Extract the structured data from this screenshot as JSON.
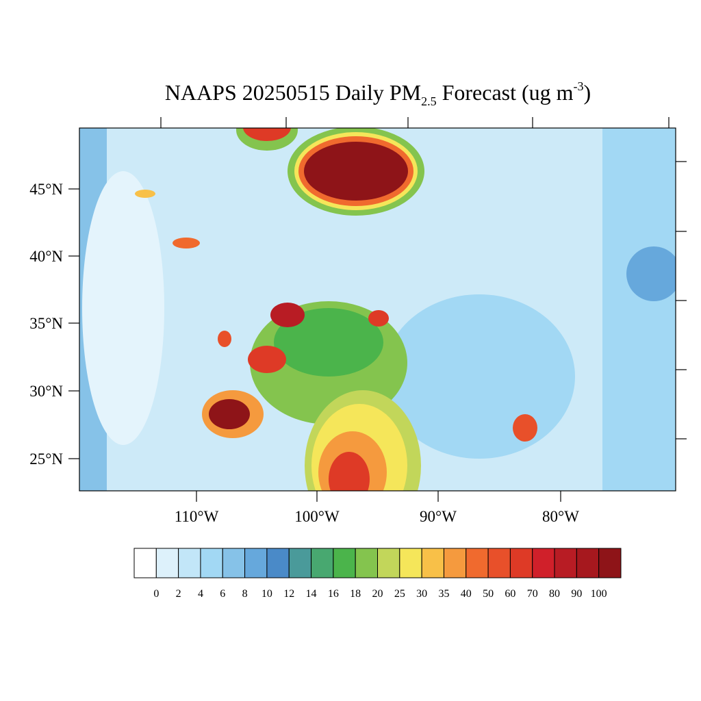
{
  "title": {
    "main": "NAAPS 20250515 Daily PM",
    "subscript": "2.5",
    "middle": " Forecast (ug m",
    "superscript": "-3",
    "end": ")"
  },
  "latitude_labels": [
    "45°N",
    "40°N",
    "35°N",
    "30°N",
    "25°N"
  ],
  "longitude_labels": [
    "110°W",
    "100°W",
    "90°W",
    "80°W"
  ],
  "colorbar": {
    "labels": [
      "0",
      "2",
      "4",
      "6",
      "8",
      "10",
      "12",
      "14",
      "16",
      "18",
      "20",
      "25",
      "30",
      "35",
      "40",
      "50",
      "60",
      "70",
      "80",
      "90",
      "100"
    ],
    "colors": [
      "#ffffff",
      "#ddf1fb",
      "#c2e6f8",
      "#a2d8f4",
      "#86c2e8",
      "#66a8dc",
      "#4a8ac8",
      "#4a9a9a",
      "#48a870",
      "#4bb44b",
      "#84c44e",
      "#c2d65a",
      "#f5e65a",
      "#f8c048",
      "#f59a3e",
      "#f06a2e",
      "#e8502a",
      "#de3a26",
      "#d0202a",
      "#b81c24",
      "#a6181e",
      "#8e1418"
    ]
  }
}
